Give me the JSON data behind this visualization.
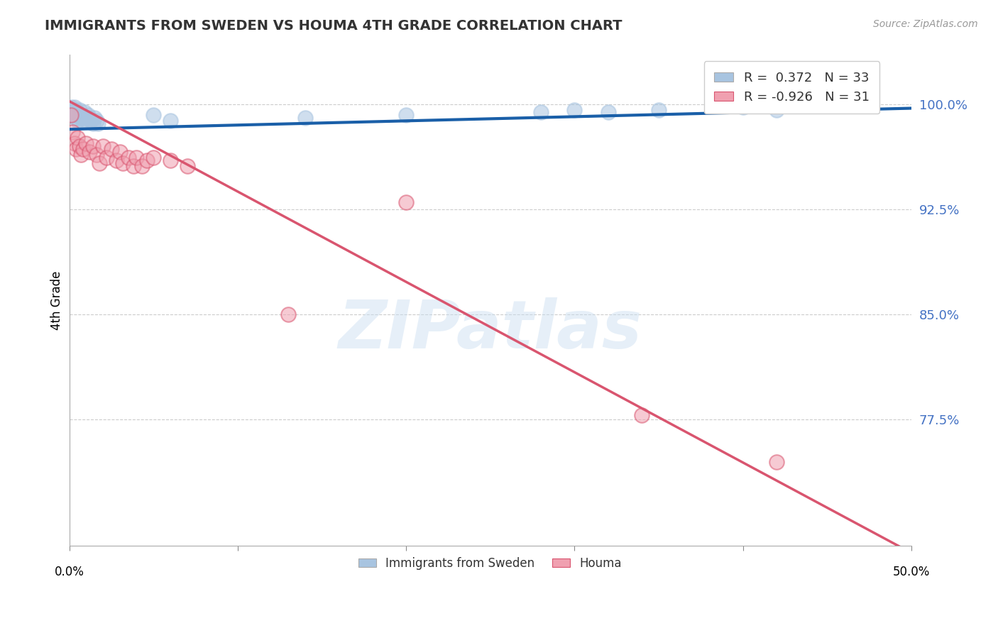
{
  "title": "IMMIGRANTS FROM SWEDEN VS HOUMA 4TH GRADE CORRELATION CHART",
  "source_text": "Source: ZipAtlas.com",
  "ylabel": "4th Grade",
  "ytick_labels": [
    "100.0%",
    "92.5%",
    "85.0%",
    "77.5%"
  ],
  "ytick_values": [
    1.0,
    0.925,
    0.85,
    0.775
  ],
  "xlim": [
    0.0,
    0.5
  ],
  "ylim": [
    0.685,
    1.035
  ],
  "blue_R": 0.372,
  "blue_N": 33,
  "pink_R": -0.926,
  "pink_N": 31,
  "blue_color": "#a8c4e0",
  "blue_line_color": "#1a5fa8",
  "pink_color": "#f0a0b0",
  "pink_line_color": "#d9556f",
  "legend_label_blue": "Immigrants from Sweden",
  "legend_label_pink": "Houma",
  "watermark": "ZIPatlas",
  "blue_scatter_x": [
    0.001,
    0.002,
    0.002,
    0.003,
    0.003,
    0.004,
    0.004,
    0.005,
    0.005,
    0.006,
    0.006,
    0.007,
    0.008,
    0.009,
    0.01,
    0.01,
    0.011,
    0.012,
    0.013,
    0.014,
    0.015,
    0.016,
    0.017,
    0.05,
    0.06,
    0.14,
    0.2,
    0.28,
    0.3,
    0.32,
    0.35,
    0.4,
    0.42
  ],
  "blue_scatter_y": [
    0.998,
    0.996,
    0.994,
    0.998,
    0.992,
    0.996,
    0.99,
    0.994,
    0.988,
    0.996,
    0.992,
    0.99,
    0.988,
    0.994,
    0.99,
    0.988,
    0.992,
    0.99,
    0.988,
    0.986,
    0.99,
    0.988,
    0.986,
    0.992,
    0.988,
    0.99,
    0.992,
    0.994,
    0.996,
    0.994,
    0.996,
    0.998,
    0.996
  ],
  "pink_scatter_x": [
    0.001,
    0.002,
    0.003,
    0.004,
    0.005,
    0.006,
    0.007,
    0.008,
    0.01,
    0.012,
    0.014,
    0.016,
    0.018,
    0.02,
    0.022,
    0.025,
    0.028,
    0.03,
    0.032,
    0.035,
    0.038,
    0.04,
    0.043,
    0.046,
    0.05,
    0.06,
    0.07,
    0.13,
    0.2,
    0.34,
    0.42
  ],
  "pink_scatter_y": [
    0.992,
    0.98,
    0.972,
    0.968,
    0.976,
    0.97,
    0.964,
    0.968,
    0.972,
    0.966,
    0.97,
    0.964,
    0.958,
    0.97,
    0.962,
    0.968,
    0.96,
    0.966,
    0.958,
    0.962,
    0.956,
    0.962,
    0.956,
    0.96,
    0.962,
    0.96,
    0.956,
    0.85,
    0.93,
    0.778,
    0.745
  ],
  "blue_line_x0": 0.0,
  "blue_line_x1": 0.5,
  "blue_line_y0": 0.982,
  "blue_line_y1": 0.997,
  "pink_line_x0": 0.0,
  "pink_line_x1": 0.5,
  "pink_line_y0": 1.002,
  "pink_line_y1": 0.68
}
